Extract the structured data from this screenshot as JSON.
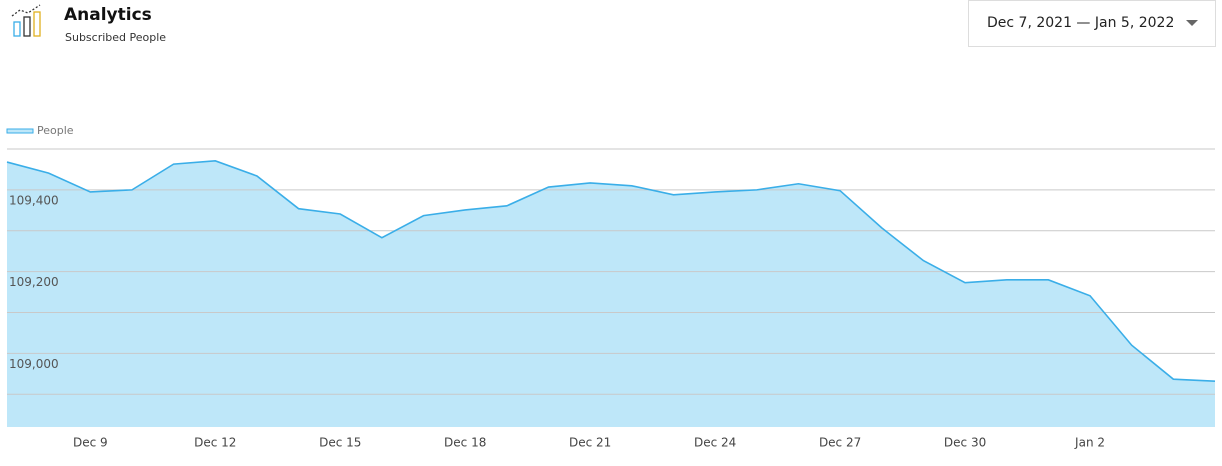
{
  "header": {
    "title": "Analytics",
    "subtitle": "Subscribed People"
  },
  "date_range": "Dec 7, 2021 — Jan 5, 2022",
  "chart_data": {
    "type": "area",
    "categories": [
      null,
      null,
      "Dec 9",
      null,
      null,
      "Dec 12",
      null,
      null,
      "Dec 15",
      null,
      null,
      "Dec 18",
      null,
      null,
      "Dec 21",
      null,
      null,
      "Dec 24",
      null,
      null,
      "Dec 27",
      null,
      null,
      "Dec 30",
      null,
      null,
      "Jan 2",
      null,
      null,
      null
    ],
    "series": [
      {
        "name": "People",
        "color": "#3aaee8",
        "fill": "#bee7f9",
        "values": [
          109468,
          109441,
          109395,
          109400,
          109463,
          109471,
          109434,
          109354,
          109341,
          109283,
          109337,
          109351,
          109361,
          109407,
          109417,
          109410,
          109388,
          109395,
          109400,
          109415,
          109398,
          109307,
          109227,
          109173,
          109180,
          109180,
          109141,
          109020,
          108937,
          108932
        ]
      }
    ],
    "ylim": [
      108820,
      109500
    ],
    "yticks": [
      {
        "value": 109400,
        "label": "109,400"
      },
      {
        "value": 109200,
        "label": "109,200"
      },
      {
        "value": 109000,
        "label": "109,000"
      }
    ],
    "minor_yticks": [
      109500,
      109300,
      109100,
      108900
    ],
    "grid": true,
    "legend": "top-left"
  }
}
